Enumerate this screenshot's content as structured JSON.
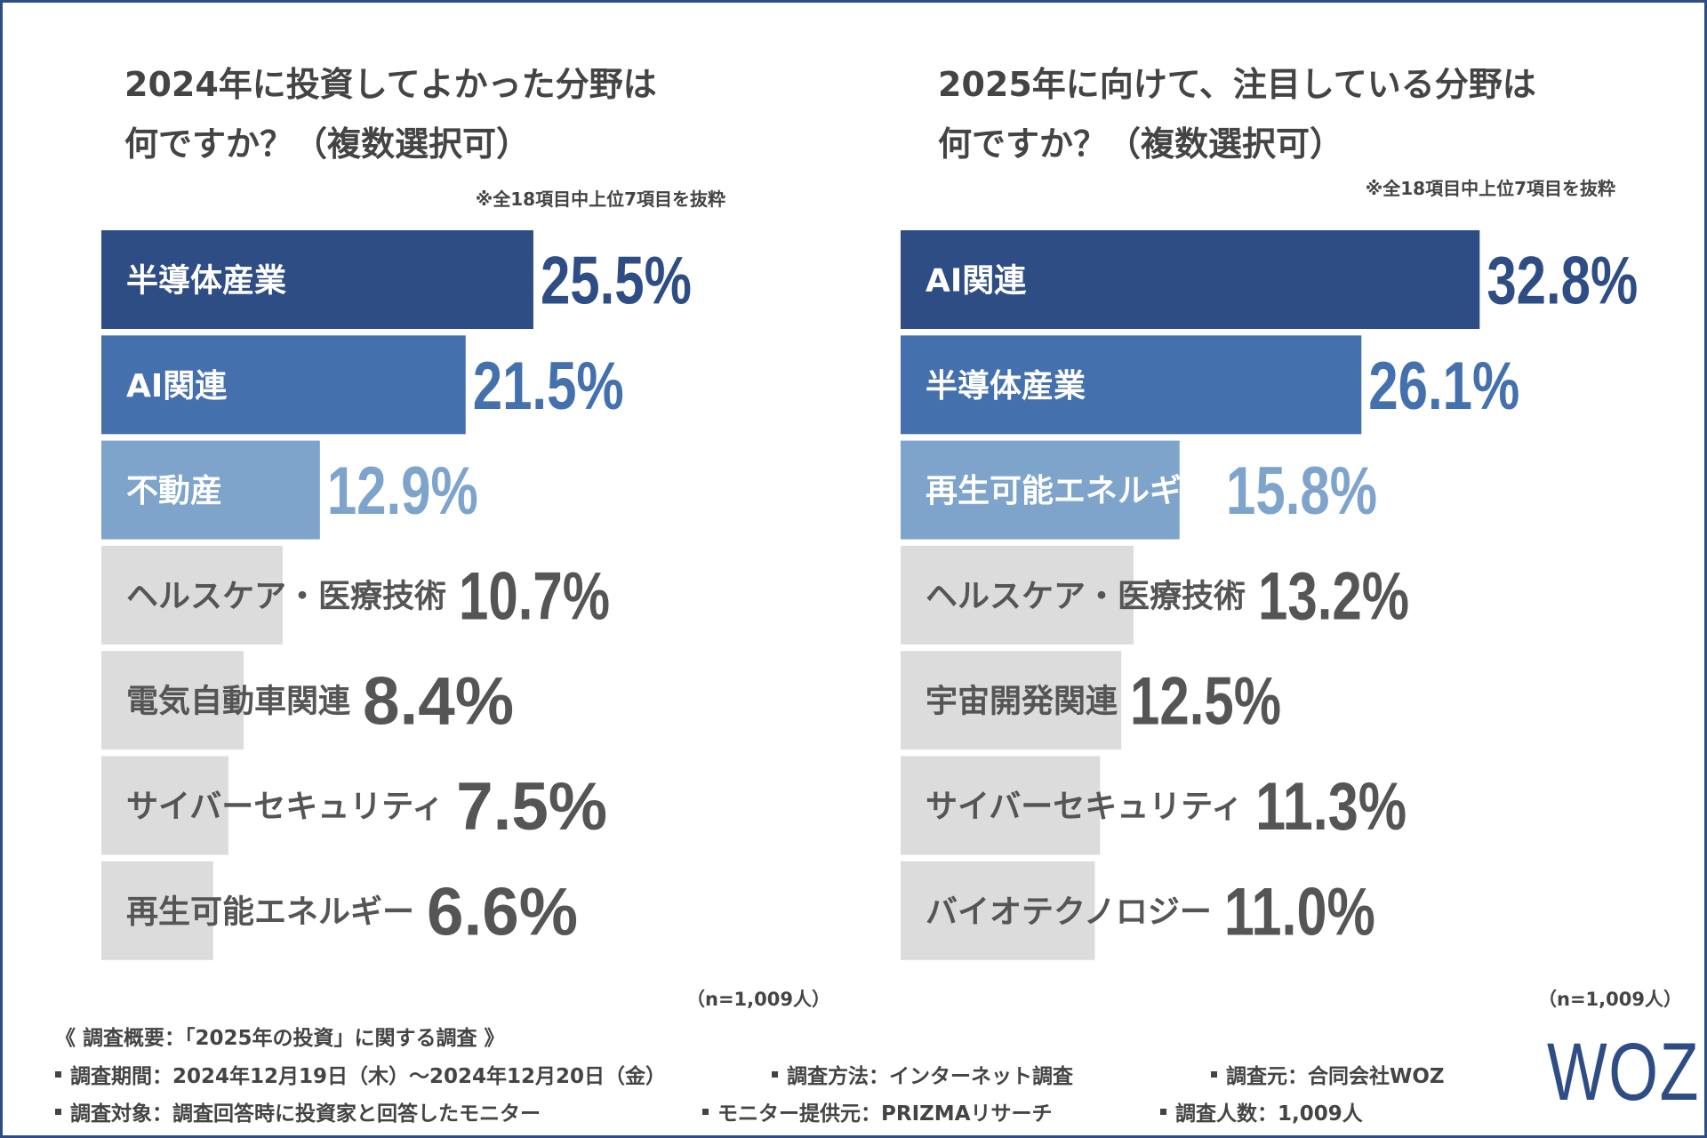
{
  "colors": {
    "rank1": "#2f4d85",
    "rank2": "#4470ad",
    "rank3": "#7ea4cb",
    "other": "#dcdcdc",
    "label_dark": "#ffffff",
    "label_light": "#555555",
    "value_other": "#555555"
  },
  "chart_data": [
    {
      "type": "bar",
      "orientation": "horizontal",
      "title": "2024年に投資してよかった分野は何ですか？（複数選択可）",
      "title_lines": [
        "2024年に投資してよかった分野は",
        "何ですか？（複数選択可）"
      ],
      "note": "※全18項目中上位7項目を抜粋",
      "categories": [
        "半導体産業",
        "AI関連",
        "不動産",
        "ヘルスケア・医療技術",
        "電気自動車関連",
        "サイバーセキュリティ",
        "再生可能エネルギー"
      ],
      "values": [
        25.5,
        21.5,
        12.9,
        10.7,
        8.4,
        7.5,
        6.6
      ],
      "value_labels": [
        "25.5%",
        "21.5%",
        "12.9%",
        "10.7%",
        "8.4%",
        "7.5%",
        "6.6%"
      ],
      "unit": "%",
      "xlim": [
        0,
        35
      ],
      "sample": "（n=1,009人）"
    },
    {
      "type": "bar",
      "orientation": "horizontal",
      "title": "2025年に向けて、注目している分野は何ですか？（複数選択可）",
      "title_lines": [
        "2025年に向けて、注目している分野は",
        "何ですか？（複数選択可）"
      ],
      "note": "※全18項目中上位7項目を抜粋",
      "categories": [
        "AI関連",
        "半導体産業",
        "再生可能エネルギー",
        "ヘルスケア・医療技術",
        "宇宙開発関連",
        "サイバーセキュリティ",
        "バイオテクノロジー"
      ],
      "values": [
        32.8,
        26.1,
        15.8,
        13.2,
        12.5,
        11.3,
        11.0
      ],
      "value_labels": [
        "32.8%",
        "26.1%",
        "15.8%",
        "13.2%",
        "12.5%",
        "11.3%",
        "11.0%"
      ],
      "unit": "%",
      "xlim": [
        0,
        35
      ],
      "sample": "（n=1,009人）"
    }
  ],
  "footer": {
    "heading": "《 調査概要：「2025年の投資」に関する調査 》",
    "period": "調査期間：2024年12月19日（木）～2024年12月20日（金）",
    "method": "調査方法：インターネット調査",
    "source": "調査元：合同会社WOZ",
    "target": "調査対象：調査回答時に投資家と回答したモニター",
    "provider": "モニター提供元：PRIZMAリサーチ",
    "count": "調査人数：1,009人"
  },
  "logo": "WOZ"
}
